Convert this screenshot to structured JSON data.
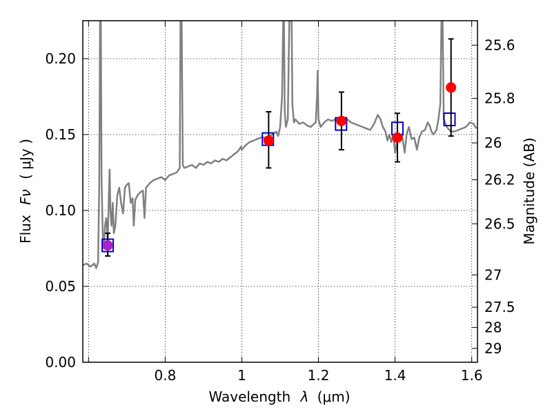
{
  "chart_data": {
    "type": "scatter",
    "title": "",
    "xlabel_text": "Wavelength",
    "xlabel_symbol": "λ",
    "xlabel_unit": "(μm)",
    "ylabel_text": "Flux",
    "ylabel_symbol": "Fν",
    "ylabel_unit": "( μJy )",
    "y2label": "Magnitude (AB)",
    "xlim": [
      0.585,
      1.615
    ],
    "ylim": [
      0.0,
      0.225
    ],
    "grid": true,
    "x_ticks": [
      {
        "value": 0.6,
        "label": ""
      },
      {
        "value": 0.8,
        "label": "0.8"
      },
      {
        "value": 1.0,
        "label": "1"
      },
      {
        "value": 1.2,
        "label": "1.2"
      },
      {
        "value": 1.4,
        "label": "1.4"
      },
      {
        "value": 1.6,
        "label": "1.6"
      }
    ],
    "y_ticks": [
      {
        "value": 0.0,
        "label": "0.00"
      },
      {
        "value": 0.05,
        "label": "0.05"
      },
      {
        "value": 0.1,
        "label": "0.10"
      },
      {
        "value": 0.15,
        "label": "0.15"
      },
      {
        "value": 0.2,
        "label": "0.20"
      }
    ],
    "mag_ticks": [
      {
        "label": "25.6",
        "flux": 0.2089
      },
      {
        "label": "25.8",
        "flux": 0.1738
      },
      {
        "label": "26",
        "flux": 0.1445
      },
      {
        "label": "26.2",
        "flux": 0.1202
      },
      {
        "label": "26.5",
        "flux": 0.0912
      },
      {
        "label": "27",
        "flux": 0.0575
      },
      {
        "label": "27.5",
        "flux": 0.0363
      },
      {
        "label": "28",
        "flux": 0.0229
      },
      {
        "label": "29",
        "flux": 0.0091
      }
    ],
    "series": [
      {
        "kind": "spectrum",
        "color": "#808080",
        "points": [
          [
            0.585,
            0.064
          ],
          [
            0.595,
            0.065
          ],
          [
            0.605,
            0.063
          ],
          [
            0.615,
            0.065
          ],
          [
            0.62,
            0.062
          ],
          [
            0.625,
            0.066
          ],
          [
            0.628,
            0.12
          ],
          [
            0.63,
            0.225
          ],
          [
            0.632,
            0.225
          ],
          [
            0.634,
            0.12
          ],
          [
            0.637,
            0.085
          ],
          [
            0.64,
            0.075
          ],
          [
            0.643,
            0.09
          ],
          [
            0.646,
            0.095
          ],
          [
            0.65,
            0.08
          ],
          [
            0.653,
            0.11
          ],
          [
            0.655,
            0.127
          ],
          [
            0.657,
            0.1
          ],
          [
            0.66,
            0.09
          ],
          [
            0.663,
            0.105
          ],
          [
            0.666,
            0.085
          ],
          [
            0.67,
            0.09
          ],
          [
            0.675,
            0.11
          ],
          [
            0.68,
            0.115
          ],
          [
            0.685,
            0.105
          ],
          [
            0.69,
            0.098
          ],
          [
            0.695,
            0.115
          ],
          [
            0.7,
            0.117
          ],
          [
            0.705,
            0.118
          ],
          [
            0.71,
            0.105
          ],
          [
            0.715,
            0.108
          ],
          [
            0.718,
            0.09
          ],
          [
            0.722,
            0.107
          ],
          [
            0.728,
            0.11
          ],
          [
            0.735,
            0.112
          ],
          [
            0.742,
            0.113
          ],
          [
            0.746,
            0.095
          ],
          [
            0.75,
            0.115
          ],
          [
            0.76,
            0.118
          ],
          [
            0.77,
            0.12
          ],
          [
            0.78,
            0.121
          ],
          [
            0.79,
            0.122
          ],
          [
            0.8,
            0.12
          ],
          [
            0.81,
            0.123
          ],
          [
            0.82,
            0.124
          ],
          [
            0.83,
            0.125
          ],
          [
            0.838,
            0.128
          ],
          [
            0.84,
            0.225
          ],
          [
            0.843,
            0.225
          ],
          [
            0.846,
            0.13
          ],
          [
            0.85,
            0.128
          ],
          [
            0.86,
            0.129
          ],
          [
            0.87,
            0.13
          ],
          [
            0.88,
            0.128
          ],
          [
            0.89,
            0.131
          ],
          [
            0.9,
            0.13
          ],
          [
            0.91,
            0.132
          ],
          [
            0.92,
            0.131
          ],
          [
            0.93,
            0.133
          ],
          [
            0.94,
            0.132
          ],
          [
            0.95,
            0.134
          ],
          [
            0.96,
            0.133
          ],
          [
            0.97,
            0.135
          ],
          [
            0.98,
            0.137
          ],
          [
            0.99,
            0.139
          ],
          [
            0.998,
            0.142
          ],
          [
            1.0,
            0.14
          ],
          [
            1.01,
            0.143
          ],
          [
            1.02,
            0.145
          ],
          [
            1.03,
            0.146
          ],
          [
            1.04,
            0.147
          ],
          [
            1.05,
            0.148
          ],
          [
            1.06,
            0.148
          ],
          [
            1.07,
            0.149
          ],
          [
            1.08,
            0.15
          ],
          [
            1.09,
            0.152
          ],
          [
            1.095,
            0.149
          ],
          [
            1.1,
            0.155
          ],
          [
            1.105,
            0.175
          ],
          [
            1.108,
            0.225
          ],
          [
            1.11,
            0.225
          ],
          [
            1.112,
            0.165
          ],
          [
            1.115,
            0.155
          ],
          [
            1.12,
            0.16
          ],
          [
            1.124,
            0.225
          ],
          [
            1.126,
            0.225
          ],
          [
            1.128,
            0.225
          ],
          [
            1.13,
            0.225
          ],
          [
            1.132,
            0.17
          ],
          [
            1.136,
            0.158
          ],
          [
            1.14,
            0.16
          ],
          [
            1.15,
            0.157
          ],
          [
            1.16,
            0.158
          ],
          [
            1.17,
            0.156
          ],
          [
            1.18,
            0.155
          ],
          [
            1.188,
            0.157
          ],
          [
            1.193,
            0.158
          ],
          [
            1.196,
            0.174
          ],
          [
            1.198,
            0.192
          ],
          [
            1.2,
            0.16
          ],
          [
            1.206,
            0.155
          ],
          [
            1.215,
            0.158
          ],
          [
            1.225,
            0.16
          ],
          [
            1.235,
            0.159
          ],
          [
            1.245,
            0.16
          ],
          [
            1.255,
            0.159
          ],
          [
            1.265,
            0.16
          ],
          [
            1.275,
            0.16
          ],
          [
            1.285,
            0.158
          ],
          [
            1.295,
            0.157
          ],
          [
            1.305,
            0.156
          ],
          [
            1.315,
            0.155
          ],
          [
            1.325,
            0.154
          ],
          [
            1.335,
            0.153
          ],
          [
            1.345,
            0.157
          ],
          [
            1.355,
            0.163
          ],
          [
            1.362,
            0.16
          ],
          [
            1.368,
            0.155
          ],
          [
            1.375,
            0.152
          ],
          [
            1.38,
            0.146
          ],
          [
            1.385,
            0.15
          ],
          [
            1.39,
            0.145
          ],
          [
            1.395,
            0.15
          ],
          [
            1.4,
            0.138
          ],
          [
            1.405,
            0.145
          ],
          [
            1.41,
            0.147
          ],
          [
            1.418,
            0.15
          ],
          [
            1.425,
            0.138
          ],
          [
            1.43,
            0.15
          ],
          [
            1.436,
            0.155
          ],
          [
            1.443,
            0.147
          ],
          [
            1.45,
            0.148
          ],
          [
            1.457,
            0.14
          ],
          [
            1.463,
            0.148
          ],
          [
            1.47,
            0.152
          ],
          [
            1.478,
            0.153
          ],
          [
            1.485,
            0.158
          ],
          [
            1.49,
            0.156
          ],
          [
            1.495,
            0.152
          ],
          [
            1.5,
            0.15
          ],
          [
            1.508,
            0.153
          ],
          [
            1.513,
            0.16
          ],
          [
            1.518,
            0.17
          ],
          [
            1.521,
            0.225
          ],
          [
            1.524,
            0.225
          ],
          [
            1.527,
            0.16
          ],
          [
            1.535,
            0.155
          ],
          [
            1.545,
            0.152
          ],
          [
            1.555,
            0.152
          ],
          [
            1.565,
            0.153
          ],
          [
            1.575,
            0.154
          ],
          [
            1.585,
            0.155
          ],
          [
            1.595,
            0.158
          ],
          [
            1.605,
            0.157
          ],
          [
            1.612,
            0.154
          ]
        ]
      },
      {
        "kind": "model_boxes",
        "color": "#0000cc",
        "points": [
          {
            "x": 0.65,
            "y": 0.077
          },
          {
            "x": 1.068,
            "y": 0.147
          },
          {
            "x": 1.259,
            "y": 0.157
          },
          {
            "x": 1.406,
            "y": 0.154
          },
          {
            "x": 1.542,
            "y": 0.16
          }
        ]
      },
      {
        "kind": "observed",
        "color": "#ff0000",
        "points": [
          {
            "x": 0.65,
            "y": 0.077,
            "yerr_low": 0.07,
            "yerr_high": 0.085,
            "color": "#aa22cc"
          },
          {
            "x": 1.07,
            "y": 0.146,
            "yerr_low": 0.128,
            "yerr_high": 0.165
          },
          {
            "x": 1.26,
            "y": 0.159,
            "yerr_low": 0.14,
            "yerr_high": 0.178
          },
          {
            "x": 1.406,
            "y": 0.148,
            "yerr_low": 0.132,
            "yerr_high": 0.164
          },
          {
            "x": 1.546,
            "y": 0.181,
            "yerr_low": 0.149,
            "yerr_high": 0.213
          }
        ]
      }
    ]
  }
}
